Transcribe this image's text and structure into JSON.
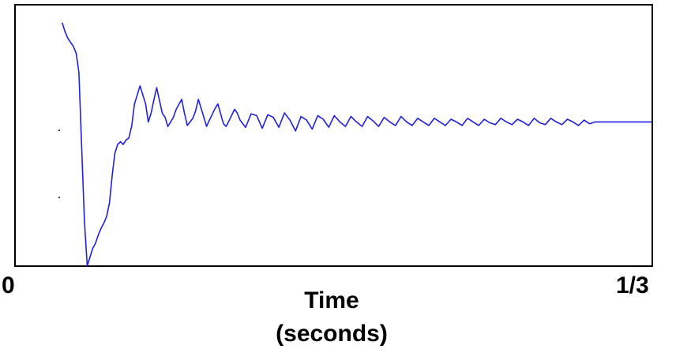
{
  "chart_data": {
    "type": "line",
    "title": "",
    "xlabel_lines": [
      "Time",
      "(seconds)"
    ],
    "ylabel": "",
    "x_tick_labels": [
      "0",
      "1/3"
    ],
    "xlim": [
      0,
      0.3333
    ],
    "ylim": [
      -1.6,
      1.3
    ],
    "grid": false,
    "legend": "none",
    "series": [
      {
        "color": "#2020e0",
        "x": [
          0.0247,
          0.0262,
          0.0276,
          0.0291,
          0.0305,
          0.032,
          0.0334,
          0.0349,
          0.0363,
          0.0378,
          0.0392,
          0.0407,
          0.042,
          0.0436,
          0.045,
          0.0465,
          0.0479,
          0.0494,
          0.0508,
          0.0522,
          0.0537,
          0.0552,
          0.0566,
          0.0581,
          0.0595,
          0.061,
          0.0625,
          0.0654,
          0.0683,
          0.0697,
          0.0712,
          0.0727,
          0.0741,
          0.077,
          0.0785,
          0.0799,
          0.0814,
          0.0828,
          0.0843,
          0.0872,
          0.0886,
          0.0901,
          0.093,
          0.0944,
          0.0959,
          0.0988,
          0.1002,
          0.1017,
          0.1031,
          0.1046,
          0.1061,
          0.109,
          0.1104,
          0.1119,
          0.1148,
          0.1162,
          0.1177,
          0.1206,
          0.1235,
          0.1264,
          0.1293,
          0.1322,
          0.1351,
          0.138,
          0.1409,
          0.1438,
          0.1467,
          0.1496,
          0.1525,
          0.1554,
          0.1583,
          0.1612,
          0.1641,
          0.167,
          0.1699,
          0.1728,
          0.1757,
          0.1786,
          0.1815,
          0.1844,
          0.1873,
          0.1902,
          0.1931,
          0.196,
          0.199,
          0.2019,
          0.2048,
          0.2077,
          0.2106,
          0.2135,
          0.2164,
          0.2193,
          0.2222,
          0.2251,
          0.228,
          0.2309,
          0.2338,
          0.2367,
          0.2396,
          0.2425,
          0.2454,
          0.2483,
          0.2512,
          0.2541,
          0.257,
          0.2599,
          0.2628,
          0.2657,
          0.2686,
          0.2715,
          0.2744,
          0.2773,
          0.2802,
          0.2831,
          0.286,
          0.2889,
          0.2918,
          0.2947,
          0.2976,
          0.299,
          0.3005,
          0.3034,
          0.3063,
          0.3092,
          0.3121,
          0.315,
          0.3179,
          0.3208,
          0.3237,
          0.3266,
          0.3295,
          0.3324,
          0.3333
        ],
        "y": [
          1.1,
          1.0,
          0.93,
          0.88,
          0.84,
          0.76,
          0.55,
          -0.3,
          -1.1,
          -1.6,
          -1.5,
          -1.4,
          -1.35,
          -1.25,
          -1.18,
          -1.12,
          -1.05,
          -0.9,
          -0.6,
          -0.35,
          -0.25,
          -0.22,
          -0.25,
          -0.2,
          -0.18,
          -0.05,
          0.2,
          0.4,
          0.2,
          0.0,
          0.1,
          0.25,
          0.38,
          0.1,
          0.05,
          -0.05,
          0.0,
          0.05,
          0.14,
          0.25,
          0.1,
          -0.04,
          0.04,
          0.12,
          0.25,
          0.05,
          -0.05,
          0.02,
          0.08,
          0.15,
          0.2,
          -0.02,
          -0.05,
          0.01,
          0.14,
          0.1,
          0.02,
          -0.06,
          0.09,
          0.07,
          -0.07,
          0.08,
          0.05,
          -0.06,
          0.1,
          0.02,
          -0.1,
          0.06,
          0.02,
          -0.08,
          0.07,
          0.03,
          -0.06,
          0.07,
          0.0,
          -0.05,
          0.06,
          0.0,
          -0.05,
          0.06,
          0.01,
          -0.05,
          0.05,
          0.0,
          -0.04,
          0.06,
          0.0,
          -0.04,
          0.04,
          0.0,
          -0.04,
          0.04,
          0.0,
          -0.04,
          0.03,
          0.0,
          -0.04,
          0.04,
          0.0,
          -0.04,
          0.03,
          -0.01,
          -0.03,
          0.04,
          0.0,
          -0.03,
          0.03,
          0.0,
          -0.04,
          0.04,
          -0.01,
          -0.03,
          0.04,
          0.0,
          -0.03,
          0.03,
          0.0,
          -0.04,
          0.02,
          0.0,
          -0.02,
          0.0,
          0.0,
          0.0,
          0.0,
          0.0,
          0.0,
          0.0,
          0.0,
          0.0,
          0.0,
          0.0,
          0.0
        ]
      }
    ]
  }
}
